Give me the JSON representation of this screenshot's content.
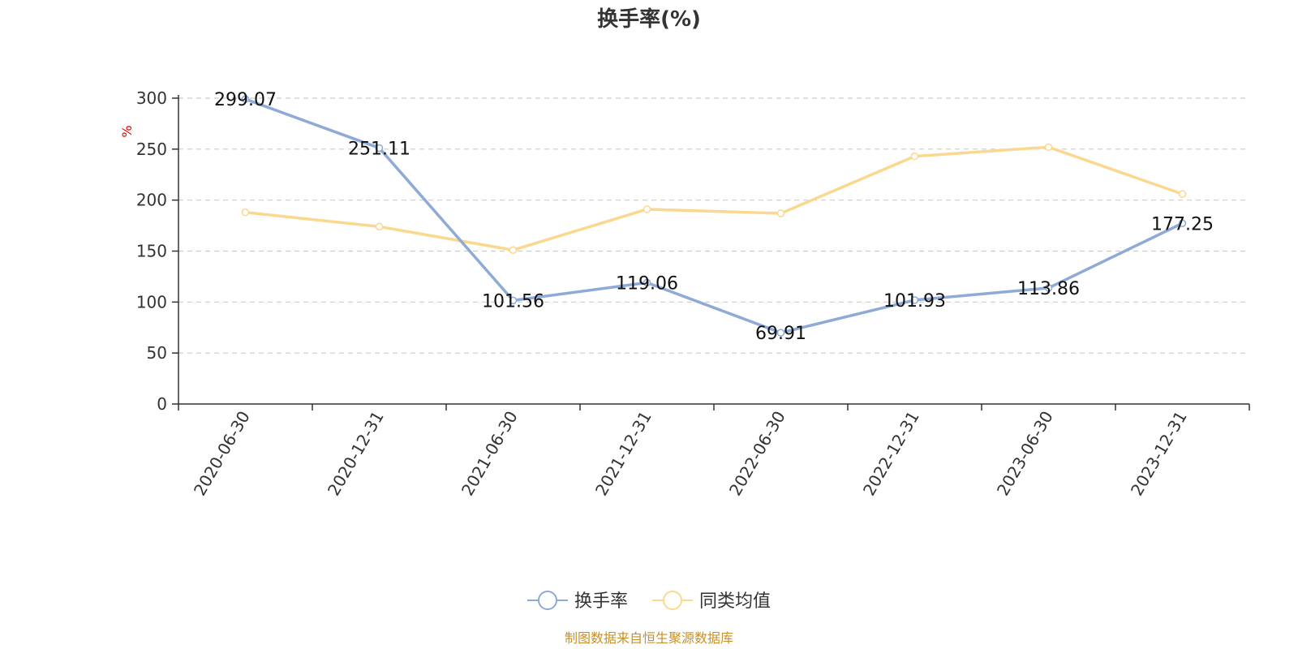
{
  "chart_data": {
    "type": "line",
    "title": "换手率(%)",
    "ylabel": "%",
    "categories": [
      "2020-06-30",
      "2020-12-31",
      "2021-06-30",
      "2021-12-31",
      "2022-06-30",
      "2022-12-31",
      "2023-06-30",
      "2023-12-31"
    ],
    "series": [
      {
        "name": "换手率",
        "color": "#8eaad6",
        "values": [
          299.07,
          251.11,
          101.56,
          119.06,
          69.91,
          101.93,
          113.86,
          177.25
        ],
        "labels": [
          "299.07",
          "251.11",
          "101.56",
          "119.06",
          "69.91",
          "101.93",
          "113.86",
          "177.25"
        ]
      },
      {
        "name": "同类均值",
        "color": "#fbd88f",
        "values": [
          188,
          174,
          151,
          191,
          187,
          243,
          252,
          206
        ]
      }
    ],
    "ylim": [
      0,
      300
    ],
    "yticks": [
      "0",
      "50",
      "100",
      "150",
      "200",
      "250",
      "300"
    ],
    "grid": true,
    "legend_position": "bottom"
  },
  "source": "制图数据来自恒生聚源数据库"
}
